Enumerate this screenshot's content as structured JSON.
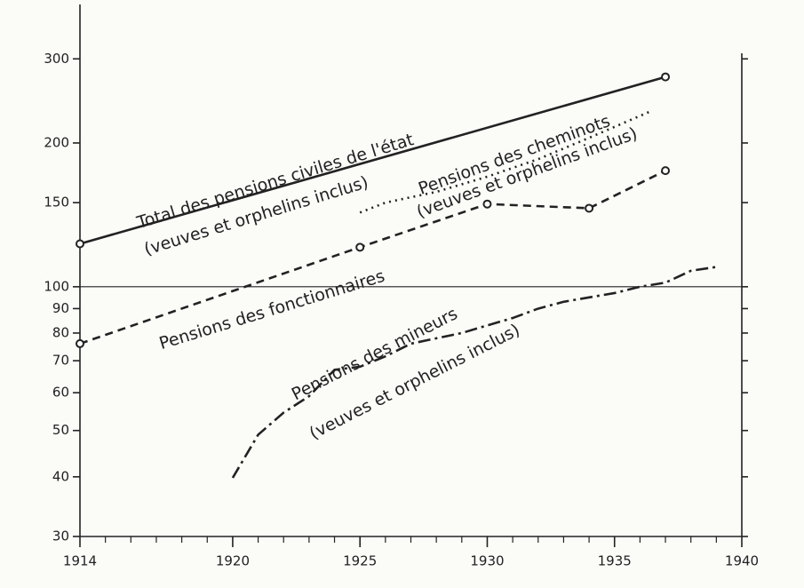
{
  "chart_data": {
    "type": "line",
    "xlim": [
      1914,
      1940
    ],
    "xticks": [
      1914,
      1920,
      1925,
      1930,
      1935,
      1940
    ],
    "xminorticks": [
      1915,
      1916,
      1917,
      1918,
      1919,
      1921,
      1922,
      1923,
      1924,
      1926,
      1927,
      1928,
      1929,
      1931,
      1932,
      1933,
      1934,
      1936,
      1937,
      1938,
      1939
    ],
    "ylim": [
      30,
      390
    ],
    "yscale": "log",
    "yticks": [
      30,
      40,
      50,
      60,
      70,
      80,
      90,
      100,
      150,
      200,
      300
    ],
    "reference_line": 100,
    "series": [
      {
        "name": "Total des pensions civiles de l'état",
        "color": "#222222",
        "markers": true,
        "x": [
          1914,
          1937
        ],
        "values": [
          123,
          275
        ]
      },
      {
        "name": "Pensions des fonctionnaires",
        "color": "#222222",
        "markers": true,
        "x": [
          1914,
          1925,
          1930,
          1934,
          1937
        ],
        "values": [
          76,
          121,
          149,
          146,
          175
        ]
      },
      {
        "name": "Pensions des cheminots",
        "color": "#222222",
        "markers": false,
        "x": [
          1925,
          1926,
          1928,
          1930,
          1932,
          1934,
          1936.5
        ],
        "values": [
          143,
          150,
          158,
          170,
          185,
          205,
          234
        ]
      },
      {
        "name": "Pensions des mineurs",
        "color": "#222222",
        "markers": false,
        "x": [
          1920,
          1921,
          1922,
          1923,
          1924,
          1925,
          1926,
          1927,
          1928,
          1929,
          1930,
          1931,
          1932,
          1933,
          1934,
          1935,
          1936,
          1937,
          1938,
          1939
        ],
        "values": [
          39.8,
          49,
          54.5,
          59,
          67,
          68,
          71.5,
          76,
          78,
          80,
          83,
          86,
          90,
          93,
          95,
          97,
          100,
          102,
          108,
          110
        ]
      }
    ],
    "annotations": [
      "Total des pensions civiles de l'état",
      "(veuves et orphelins inclus)",
      "Pensions des cheminots",
      "(veuves et orphelins inclus)",
      "Pensions des fonctionnaires",
      "Pensions des mineurs",
      "(veuves et orphelins inclus)"
    ]
  }
}
